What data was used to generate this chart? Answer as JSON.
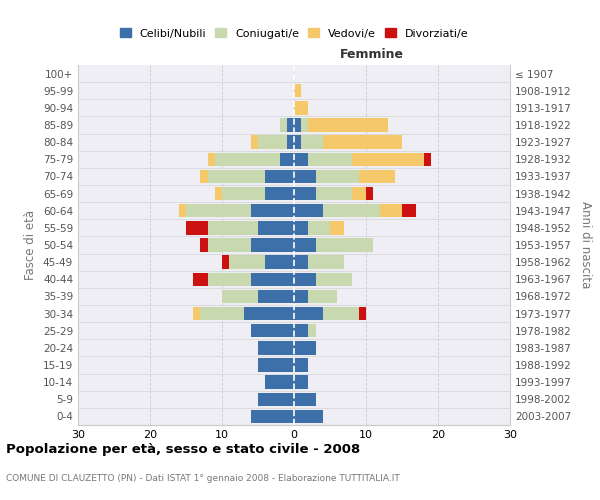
{
  "age_groups": [
    "0-4",
    "5-9",
    "10-14",
    "15-19",
    "20-24",
    "25-29",
    "30-34",
    "35-39",
    "40-44",
    "45-49",
    "50-54",
    "55-59",
    "60-64",
    "65-69",
    "70-74",
    "75-79",
    "80-84",
    "85-89",
    "90-94",
    "95-99",
    "100+"
  ],
  "birth_years": [
    "2003-2007",
    "1998-2002",
    "1993-1997",
    "1988-1992",
    "1983-1987",
    "1978-1982",
    "1973-1977",
    "1968-1972",
    "1963-1967",
    "1958-1962",
    "1953-1957",
    "1948-1952",
    "1943-1947",
    "1938-1942",
    "1933-1937",
    "1928-1932",
    "1923-1927",
    "1918-1922",
    "1913-1917",
    "1908-1912",
    "≤ 1907"
  ],
  "male": {
    "celibi": [
      6,
      5,
      4,
      5,
      5,
      6,
      7,
      5,
      6,
      4,
      6,
      5,
      6,
      4,
      4,
      2,
      1,
      1,
      0,
      0,
      0
    ],
    "coniugati": [
      0,
      0,
      0,
      0,
      0,
      0,
      6,
      5,
      6,
      5,
      6,
      7,
      9,
      6,
      8,
      9,
      4,
      1,
      0,
      0,
      0
    ],
    "vedovi": [
      0,
      0,
      0,
      0,
      0,
      0,
      1,
      0,
      0,
      0,
      0,
      0,
      1,
      1,
      1,
      1,
      1,
      0,
      0,
      0,
      0
    ],
    "divorziati": [
      0,
      0,
      0,
      0,
      0,
      0,
      0,
      0,
      2,
      1,
      1,
      3,
      0,
      0,
      0,
      0,
      0,
      0,
      0,
      0,
      0
    ]
  },
  "female": {
    "nubili": [
      4,
      3,
      2,
      2,
      3,
      2,
      4,
      2,
      3,
      2,
      3,
      2,
      4,
      3,
      3,
      2,
      1,
      1,
      0,
      0,
      0
    ],
    "coniugate": [
      0,
      0,
      0,
      0,
      0,
      1,
      5,
      4,
      5,
      5,
      8,
      3,
      8,
      5,
      6,
      6,
      3,
      1,
      0,
      0,
      0
    ],
    "vedove": [
      0,
      0,
      0,
      0,
      0,
      0,
      0,
      0,
      0,
      0,
      0,
      2,
      3,
      2,
      5,
      10,
      11,
      11,
      2,
      1,
      0
    ],
    "divorziate": [
      0,
      0,
      0,
      0,
      0,
      0,
      1,
      0,
      0,
      0,
      0,
      0,
      2,
      1,
      0,
      1,
      0,
      0,
      0,
      0,
      0
    ]
  },
  "color_celibi": "#3d6fa8",
  "color_coniugati": "#c8d9b0",
  "color_vedovi": "#f5c96a",
  "color_divorziati": "#cc1111",
  "title": "Popolazione per età, sesso e stato civile - 2008",
  "subtitle": "COMUNE DI CLAUZETTO (PN) - Dati ISTAT 1° gennaio 2008 - Elaborazione TUTTITALIA.IT",
  "xlabel_right": "Femmine",
  "ylabel_left": "Fasce di età",
  "ylabel_right": "Anni di nascita",
  "xlim": 30,
  "bg_color": "#eeeef4"
}
